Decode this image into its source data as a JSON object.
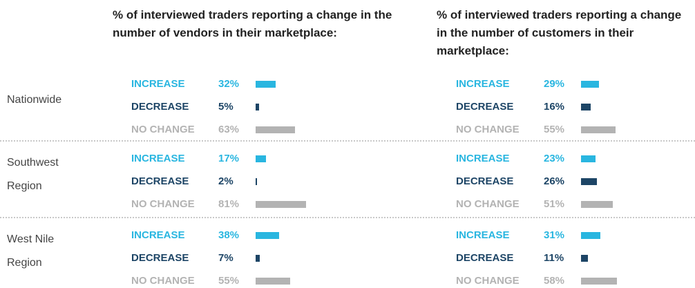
{
  "regions": [
    "Nationwide",
    "Southwest Region",
    "West Nile Region"
  ],
  "chart_data": [
    {
      "type": "bar",
      "title": "% of interviewed traders reporting a change in the number of vendors in their marketplace:",
      "series": [
        {
          "name": "INCREASE",
          "color": "#29b6e0",
          "values": [
            32,
            17,
            38
          ],
          "value_labels": [
            "32%",
            "17%",
            "38%"
          ]
        },
        {
          "name": "DECREASE",
          "color": "#1d4566",
          "values": [
            5,
            2,
            7
          ],
          "value_labels": [
            "5%",
            "2%",
            "7%"
          ]
        },
        {
          "name": "NO CHANGE",
          "color": "#b3b3b3",
          "values": [
            63,
            81,
            55
          ],
          "value_labels": [
            "63%",
            "81%",
            "55%"
          ]
        }
      ]
    },
    {
      "type": "bar",
      "title": "% of interviewed traders reporting a change in the number of customers in their marketplace:",
      "series": [
        {
          "name": "INCREASE",
          "color": "#29b6e0",
          "values": [
            29,
            23,
            31
          ],
          "value_labels": [
            "29%",
            "23%",
            "31%"
          ]
        },
        {
          "name": "DECREASE",
          "color": "#1d4566",
          "values": [
            16,
            26,
            11
          ],
          "value_labels": [
            "16%",
            "26%",
            "11%"
          ]
        },
        {
          "name": "NO CHANGE",
          "color": "#b3b3b3",
          "values": [
            55,
            51,
            58
          ],
          "value_labels": [
            "55%",
            "51%",
            "58%"
          ]
        }
      ]
    }
  ]
}
